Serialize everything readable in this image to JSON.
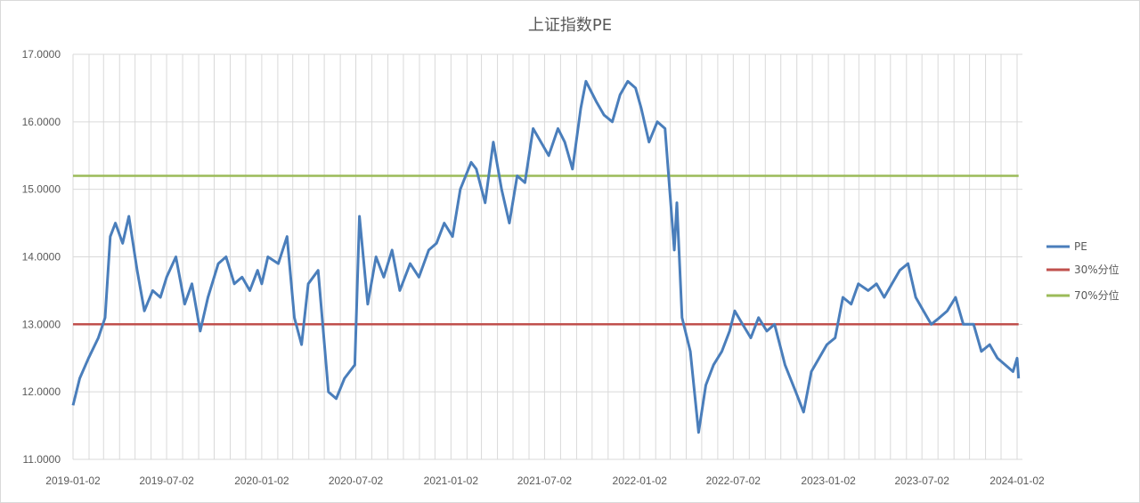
{
  "chart_data": {
    "type": "line",
    "title": "上证指数PE",
    "xlabel": "",
    "ylabel": "",
    "ylim": [
      11.0,
      17.0
    ],
    "y_ticks": [
      "11.0000",
      "12.0000",
      "13.0000",
      "14.0000",
      "15.0000",
      "16.0000",
      "17.0000"
    ],
    "x_ticks": [
      "2019-01-02",
      "2019-07-02",
      "2020-01-02",
      "2020-07-02",
      "2021-01-02",
      "2021-07-02",
      "2022-01-02",
      "2022-07-02",
      "2023-01-02",
      "2023-07-02",
      "2024-01-02"
    ],
    "x_range": [
      "2019-01-02",
      "2024-01-02"
    ],
    "grid": "vertical",
    "legend_position": "right",
    "series": [
      {
        "name": "PE",
        "color": "#4a7ebb",
        "x": [
          "2019-01-02",
          "2019-01-15",
          "2019-02-01",
          "2019-02-20",
          "2019-03-05",
          "2019-03-15",
          "2019-03-25",
          "2019-04-08",
          "2019-04-20",
          "2019-05-06",
          "2019-05-20",
          "2019-06-05",
          "2019-06-20",
          "2019-07-02",
          "2019-07-20",
          "2019-08-06",
          "2019-08-20",
          "2019-09-05",
          "2019-09-20",
          "2019-10-10",
          "2019-10-25",
          "2019-11-10",
          "2019-11-25",
          "2019-12-10",
          "2019-12-25",
          "2020-01-02",
          "2020-01-14",
          "2020-02-03",
          "2020-02-20",
          "2020-03-05",
          "2020-03-19",
          "2020-04-01",
          "2020-04-20",
          "2020-05-10",
          "2020-05-25",
          "2020-06-10",
          "2020-06-30",
          "2020-07-09",
          "2020-07-25",
          "2020-08-10",
          "2020-08-25",
          "2020-09-10",
          "2020-09-25",
          "2020-10-15",
          "2020-11-01",
          "2020-11-20",
          "2020-12-05",
          "2020-12-20",
          "2021-01-05",
          "2021-01-20",
          "2021-02-10",
          "2021-02-20",
          "2021-03-09",
          "2021-03-25",
          "2021-04-10",
          "2021-04-25",
          "2021-05-10",
          "2021-05-25",
          "2021-06-10",
          "2021-06-25",
          "2021-07-10",
          "2021-07-28",
          "2021-08-10",
          "2021-08-25",
          "2021-09-10",
          "2021-09-20",
          "2021-10-10",
          "2021-10-25",
          "2021-11-10",
          "2021-11-25",
          "2021-12-10",
          "2021-12-25",
          "2022-01-05",
          "2022-01-20",
          "2022-02-05",
          "2022-02-20",
          "2022-03-01",
          "2022-03-10",
          "2022-03-15",
          "2022-03-25",
          "2022-04-10",
          "2022-04-26",
          "2022-05-10",
          "2022-05-25",
          "2022-06-10",
          "2022-06-25",
          "2022-07-05",
          "2022-07-20",
          "2022-08-05",
          "2022-08-20",
          "2022-09-05",
          "2022-09-20",
          "2022-10-10",
          "2022-10-31",
          "2022-11-15",
          "2022-11-30",
          "2022-12-15",
          "2022-12-30",
          "2023-01-15",
          "2023-01-30",
          "2023-02-15",
          "2023-03-01",
          "2023-03-20",
          "2023-04-05",
          "2023-04-20",
          "2023-05-05",
          "2023-05-20",
          "2023-06-05",
          "2023-06-20",
          "2023-07-05",
          "2023-07-20",
          "2023-08-05",
          "2023-08-20",
          "2023-09-05",
          "2023-09-20",
          "2023-10-10",
          "2023-10-25",
          "2023-11-10",
          "2023-11-25",
          "2023-12-10",
          "2023-12-25",
          "2024-01-02",
          "2024-01-05"
        ],
        "values": [
          11.8,
          12.2,
          12.5,
          12.8,
          13.1,
          14.3,
          14.5,
          14.2,
          14.6,
          13.8,
          13.2,
          13.5,
          13.4,
          13.7,
          14.0,
          13.3,
          13.6,
          12.9,
          13.4,
          13.9,
          14.0,
          13.6,
          13.7,
          13.5,
          13.8,
          13.6,
          14.0,
          13.9,
          14.3,
          13.1,
          12.7,
          13.6,
          13.8,
          12.0,
          11.9,
          12.2,
          12.4,
          14.6,
          13.3,
          14.0,
          13.7,
          14.1,
          13.5,
          13.9,
          13.7,
          14.1,
          14.2,
          14.5,
          14.3,
          15.0,
          15.4,
          15.3,
          14.8,
          15.7,
          15.0,
          14.5,
          15.2,
          15.1,
          15.9,
          15.7,
          15.5,
          15.9,
          15.7,
          15.3,
          16.2,
          16.6,
          16.3,
          16.1,
          16.0,
          16.4,
          16.6,
          16.5,
          16.2,
          15.7,
          16.0,
          15.9,
          15.0,
          14.1,
          14.8,
          13.1,
          12.6,
          11.4,
          12.1,
          12.4,
          12.6,
          12.9,
          13.2,
          13.0,
          12.8,
          13.1,
          12.9,
          13.0,
          12.4,
          12.0,
          11.7,
          12.3,
          12.5,
          12.7,
          12.8,
          13.4,
          13.3,
          13.6,
          13.5,
          13.6,
          13.4,
          13.6,
          13.8,
          13.9,
          13.4,
          13.2,
          13.0,
          13.1,
          13.2,
          13.4,
          13.0,
          13.0,
          12.6,
          12.7,
          12.5,
          12.4,
          12.3,
          12.5,
          12.2
        ]
      },
      {
        "name": "30%分位",
        "color": "#c0504d",
        "x": [
          "2019-01-02",
          "2024-01-05"
        ],
        "values": [
          13.0,
          13.0
        ]
      },
      {
        "name": "70%分位",
        "color": "#9bbb59",
        "x": [
          "2019-01-02",
          "2024-01-05"
        ],
        "values": [
          15.2,
          15.2
        ]
      }
    ]
  }
}
